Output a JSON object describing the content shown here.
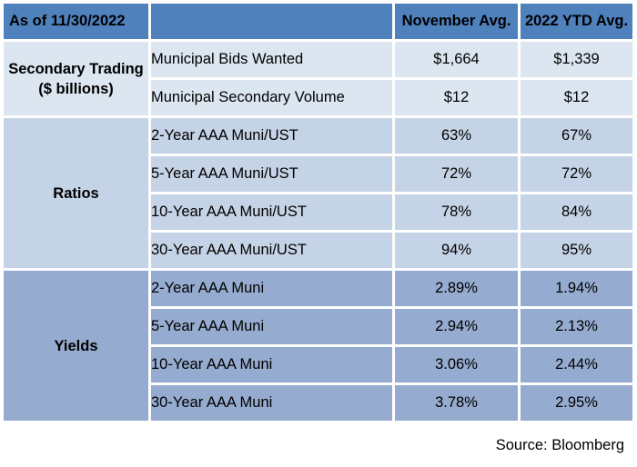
{
  "header": {
    "as_of": "As of 11/30/2022",
    "col_nov": "November Avg.",
    "col_ytd": "2022 YTD Avg."
  },
  "groups": {
    "secondary": {
      "line1": "Secondary Trading",
      "line2": "($ billions)"
    },
    "ratios": "Ratios",
    "yields": "Yields"
  },
  "rows": [
    {
      "label": "Municipal Bids Wanted",
      "nov": "$1,664",
      "ytd": "$1,339"
    },
    {
      "label": "Municipal Secondary Volume",
      "nov": "$12",
      "ytd": "$12"
    },
    {
      "label": "2-Year AAA Muni/UST",
      "nov": "63%",
      "ytd": "67%"
    },
    {
      "label": "5-Year AAA Muni/UST",
      "nov": "72%",
      "ytd": "72%"
    },
    {
      "label": "10-Year AAA Muni/UST",
      "nov": "78%",
      "ytd": "84%"
    },
    {
      "label": "30-Year AAA Muni/UST",
      "nov": "94%",
      "ytd": "95%"
    },
    {
      "label": "2-Year AAA Muni",
      "nov": "2.89%",
      "ytd": "1.94%"
    },
    {
      "label": "5-Year AAA Muni",
      "nov": "2.94%",
      "ytd": "2.13%"
    },
    {
      "label": "10-Year AAA Muni",
      "nov": "3.06%",
      "ytd": "2.44%"
    },
    {
      "label": "30-Year AAA Muni",
      "nov": "3.78%",
      "ytd": "2.95%"
    }
  ],
  "source": "Source: Bloomberg",
  "colors": {
    "header": "#4f81bd",
    "secondary": "#dce6f1",
    "ratios": "#c5d3e6",
    "yields": "#95abcf"
  }
}
